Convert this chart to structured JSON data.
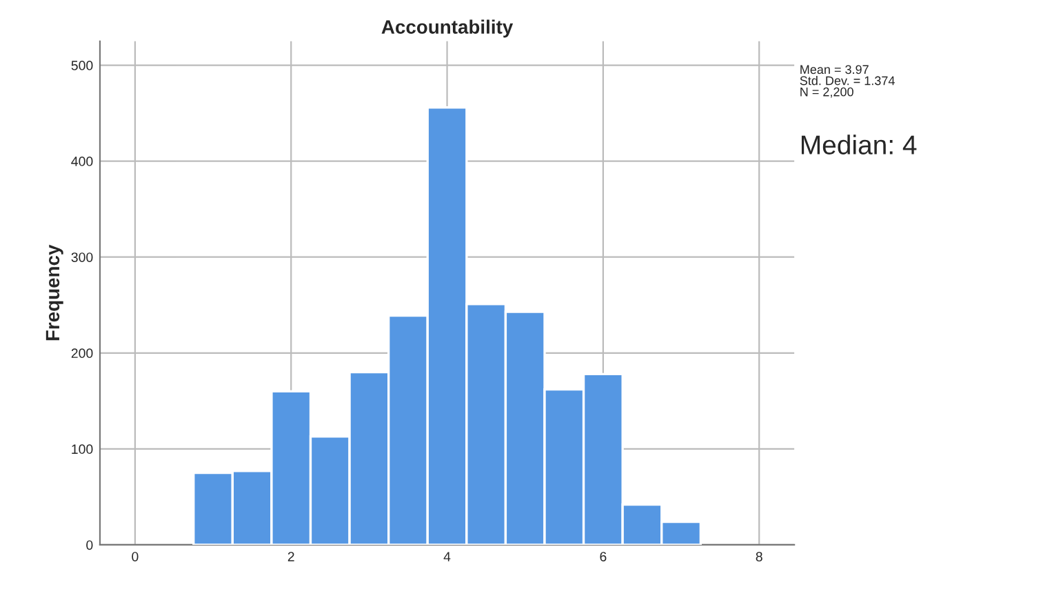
{
  "chart_data": {
    "type": "histogram",
    "title": "Accountability",
    "ylabel": "Frequency",
    "bins": [
      0.75,
      1.25,
      1.75,
      2.25,
      2.75,
      3.25,
      3.75,
      4.25,
      4.75,
      5.25,
      5.75,
      6.25,
      6.75,
      7.25
    ],
    "values": [
      75,
      77,
      160,
      113,
      180,
      239,
      456,
      251,
      243,
      162,
      178,
      42,
      24
    ],
    "color": "#5597e3",
    "xlim": [
      -0.45,
      8.45
    ],
    "xticks": [
      0,
      2,
      4,
      6,
      8
    ],
    "ylim": [
      0,
      525
    ],
    "yticks": [
      0,
      100,
      200,
      300,
      400,
      500
    ],
    "grid": true,
    "annotations": [
      "Mean = 3.97\nStd. Dev. = 1.374\nN = 2,200",
      "Median: 4"
    ]
  }
}
